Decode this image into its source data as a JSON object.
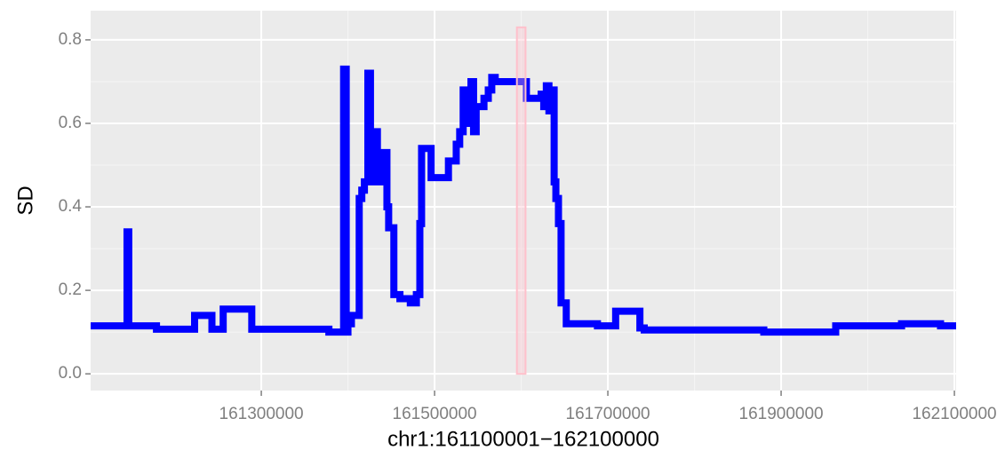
{
  "chart_data": {
    "type": "line",
    "step": "hv",
    "x_label": "chr1:161100001−162100000",
    "y_label": "SD",
    "xlim": [
      161103000,
      162102000
    ],
    "ylim": [
      -0.04,
      0.87
    ],
    "xticks": [
      161300000,
      161500000,
      161700000,
      161900000,
      162100000
    ],
    "yticks": [
      {
        "value": 0,
        "label": "0.0"
      },
      0.2,
      0.4,
      0.6,
      0.8
    ],
    "grid": true,
    "minor_grid": true,
    "series": [
      {
        "color": "#0000ff",
        "x": [
          161103000,
          161145000,
          161147000,
          161179000,
          161223000,
          161243000,
          161256000,
          161289000,
          161378000,
          161395000,
          161398000,
          161400000,
          161404000,
          161413000,
          161416000,
          161419000,
          161423000,
          161426000,
          161431000,
          161434000,
          161442000,
          161445000,
          161447000,
          161453000,
          161460000,
          161472000,
          161479000,
          161483000,
          161485000,
          161496000,
          161516000,
          161525000,
          161529000,
          161533000,
          161536000,
          161539000,
          161542000,
          161545000,
          161548000,
          161557000,
          161562000,
          161566000,
          161570000,
          161606000,
          161623000,
          161626000,
          161629000,
          161632000,
          161635000,
          161638000,
          161640000,
          161643000,
          161646000,
          161652000,
          161688000,
          161709000,
          161737000,
          161742000,
          161880000,
          161963000,
          162039000,
          162084000,
          162102000
        ],
        "values": [
          0.115,
          0.34,
          0.115,
          0.107,
          0.14,
          0.107,
          0.155,
          0.107,
          0.1,
          0.73,
          0.1,
          0.12,
          0.14,
          0.42,
          0.44,
          0.46,
          0.72,
          0.46,
          0.58,
          0.46,
          0.53,
          0.4,
          0.35,
          0.19,
          0.18,
          0.17,
          0.19,
          0.36,
          0.54,
          0.47,
          0.51,
          0.55,
          0.58,
          0.68,
          0.6,
          0.65,
          0.7,
          0.58,
          0.64,
          0.66,
          0.68,
          0.71,
          0.7,
          0.66,
          0.67,
          0.64,
          0.69,
          0.63,
          0.68,
          0.46,
          0.42,
          0.36,
          0.17,
          0.12,
          0.115,
          0.15,
          0.11,
          0.105,
          0.1,
          0.115,
          0.12,
          0.115,
          0.115
        ]
      }
    ],
    "highlight": {
      "xmin": 161595000,
      "xmax": 161605000,
      "ymin": 0,
      "ymax": 0.83,
      "color": "#ffc0cb"
    }
  }
}
